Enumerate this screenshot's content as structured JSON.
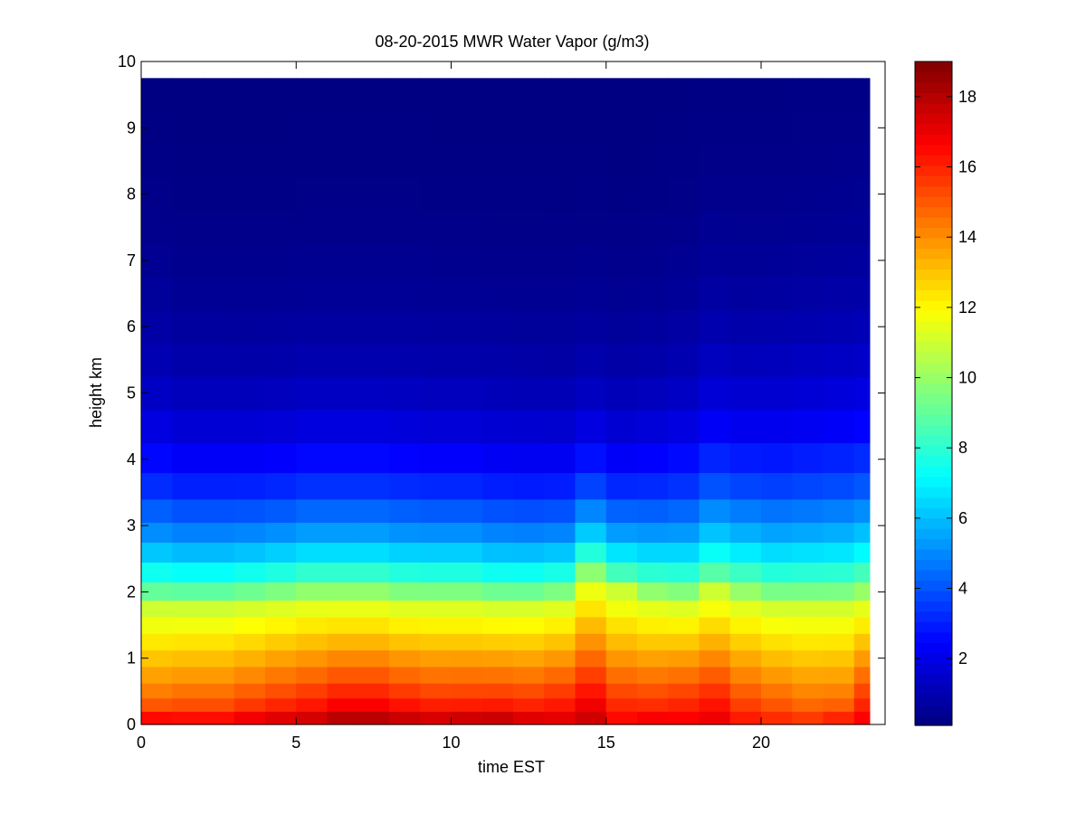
{
  "chart_data": {
    "type": "heatmap",
    "title": "08-20-2015 MWR Water Vapor (g/m3)",
    "xlabel": "time EST",
    "ylabel": "height km",
    "xlim": [
      0,
      24
    ],
    "ylim": [
      0,
      10
    ],
    "xticks": [
      0,
      5,
      10,
      15,
      20
    ],
    "yticks": [
      0,
      1,
      2,
      3,
      4,
      5,
      6,
      7,
      8,
      9,
      10
    ],
    "colorbar": {
      "colormap": "jet",
      "range": [
        0.1,
        19.0
      ],
      "ticks": [
        2,
        4,
        6,
        8,
        10,
        12,
        14,
        16,
        18
      ]
    },
    "x_edges": [
      0,
      1,
      2,
      3,
      4,
      5,
      6,
      7,
      8,
      9,
      10,
      11,
      12,
      13,
      14,
      15,
      16,
      17,
      18,
      19,
      20,
      21,
      22,
      23,
      23.5
    ],
    "height_levels_km": [
      0.1,
      0.3,
      0.5,
      0.75,
      1.0,
      1.25,
      1.5,
      1.75,
      2.0,
      2.3,
      2.6,
      2.9,
      3.2,
      3.6,
      4.0,
      4.5,
      5.0,
      5.5,
      6.0,
      6.5,
      7.0,
      7.5,
      8.0,
      8.5,
      9.0,
      9.5
    ],
    "ymax_data_km": 9.75,
    "surface_values": [
      17.2,
      17.0,
      17.0,
      17.5,
      17.8,
      18.0,
      18.5,
      18.5,
      18.2,
      18.0,
      18.2,
      18.3,
      17.8,
      17.5,
      17.8,
      16.8,
      17.2,
      17.0,
      17.2,
      16.5,
      16.2,
      16.0,
      16.5,
      17.0
    ],
    "moist_layer_top_km": [
      1.75,
      1.75,
      1.75,
      1.8,
      1.85,
      1.9,
      1.9,
      1.9,
      1.85,
      1.85,
      1.85,
      1.8,
      1.8,
      1.85,
      2.2,
      2.0,
      1.9,
      1.85,
      2.0,
      1.9,
      1.8,
      1.8,
      1.8,
      1.9
    ],
    "low_band_values": [
      13.0,
      13.5,
      13.5,
      13.8,
      14.2,
      14.6,
      15.0,
      15.0,
      14.6,
      14.3,
      14.2,
      14.2,
      14.3,
      15.0,
      16.0,
      15.0,
      14.5,
      15.0,
      15.5,
      14.5,
      14.0,
      13.5,
      13.3,
      15.0
    ],
    "moisture_scale_height_km": [
      1.55,
      1.45,
      1.45,
      1.42,
      1.42,
      1.45,
      1.45,
      1.45,
      1.45,
      1.42,
      1.42,
      1.4,
      1.38,
      1.35,
      1.3,
      1.3,
      1.4,
      1.5,
      1.6,
      1.6,
      1.65,
      1.7,
      1.75,
      1.75
    ]
  }
}
